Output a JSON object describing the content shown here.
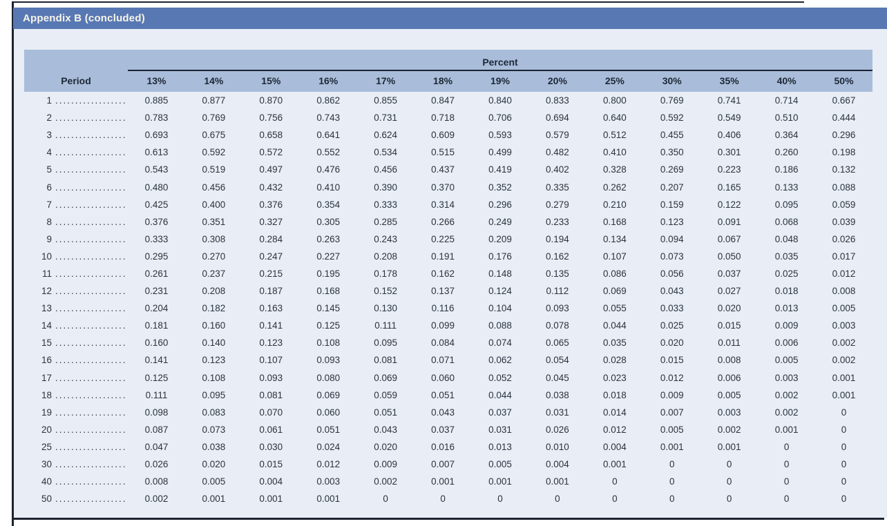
{
  "page": {
    "banner_title": "Appendix B (concluded)"
  },
  "colors": {
    "banner_bg": "#5878b4",
    "banner_text": "#f8f4ea",
    "header_block_bg": "#a9bdda",
    "content_bg": "#e9edf5",
    "rule": "#1c2230",
    "text": "#2a3340"
  },
  "table": {
    "group_header": "Percent",
    "period_header": "Period",
    "leader_dots": "..................",
    "columns": [
      "13%",
      "14%",
      "15%",
      "16%",
      "17%",
      "18%",
      "19%",
      "20%",
      "25%",
      "30%",
      "35%",
      "40%",
      "50%"
    ],
    "rows": [
      {
        "period": "1",
        "values": [
          "0.885",
          "0.877",
          "0.870",
          "0.862",
          "0.855",
          "0.847",
          "0.840",
          "0.833",
          "0.800",
          "0.769",
          "0.741",
          "0.714",
          "0.667"
        ]
      },
      {
        "period": "2",
        "values": [
          "0.783",
          "0.769",
          "0.756",
          "0.743",
          "0.731",
          "0.718",
          "0.706",
          "0.694",
          "0.640",
          "0.592",
          "0.549",
          "0.510",
          "0.444"
        ]
      },
      {
        "period": "3",
        "values": [
          "0.693",
          "0.675",
          "0.658",
          "0.641",
          "0.624",
          "0.609",
          "0.593",
          "0.579",
          "0.512",
          "0.455",
          "0.406",
          "0.364",
          "0.296"
        ]
      },
      {
        "period": "4",
        "values": [
          "0.613",
          "0.592",
          "0.572",
          "0.552",
          "0.534",
          "0.515",
          "0.499",
          "0.482",
          "0.410",
          "0.350",
          "0.301",
          "0.260",
          "0.198"
        ]
      },
      {
        "period": "5",
        "values": [
          "0.543",
          "0.519",
          "0.497",
          "0.476",
          "0.456",
          "0.437",
          "0.419",
          "0.402",
          "0.328",
          "0.269",
          "0.223",
          "0.186",
          "0.132"
        ]
      },
      {
        "period": "6",
        "values": [
          "0.480",
          "0.456",
          "0.432",
          "0.410",
          "0.390",
          "0.370",
          "0.352",
          "0.335",
          "0.262",
          "0.207",
          "0.165",
          "0.133",
          "0.088"
        ]
      },
      {
        "period": "7",
        "values": [
          "0.425",
          "0.400",
          "0.376",
          "0.354",
          "0.333",
          "0.314",
          "0.296",
          "0.279",
          "0.210",
          "0.159",
          "0.122",
          "0.095",
          "0.059"
        ]
      },
      {
        "period": "8",
        "values": [
          "0.376",
          "0.351",
          "0.327",
          "0.305",
          "0.285",
          "0.266",
          "0.249",
          "0.233",
          "0.168",
          "0.123",
          "0.091",
          "0.068",
          "0.039"
        ]
      },
      {
        "period": "9",
        "values": [
          "0.333",
          "0.308",
          "0.284",
          "0.263",
          "0.243",
          "0.225",
          "0.209",
          "0.194",
          "0.134",
          "0.094",
          "0.067",
          "0.048",
          "0.026"
        ]
      },
      {
        "period": "10",
        "values": [
          "0.295",
          "0.270",
          "0.247",
          "0.227",
          "0.208",
          "0.191",
          "0.176",
          "0.162",
          "0.107",
          "0.073",
          "0.050",
          "0.035",
          "0.017"
        ]
      },
      {
        "period": "11",
        "values": [
          "0.261",
          "0.237",
          "0.215",
          "0.195",
          "0.178",
          "0.162",
          "0.148",
          "0.135",
          "0.086",
          "0.056",
          "0.037",
          "0.025",
          "0.012"
        ]
      },
      {
        "period": "12",
        "values": [
          "0.231",
          "0.208",
          "0.187",
          "0.168",
          "0.152",
          "0.137",
          "0.124",
          "0.112",
          "0.069",
          "0.043",
          "0.027",
          "0.018",
          "0.008"
        ]
      },
      {
        "period": "13",
        "values": [
          "0.204",
          "0.182",
          "0.163",
          "0.145",
          "0.130",
          "0.116",
          "0.104",
          "0.093",
          "0.055",
          "0.033",
          "0.020",
          "0.013",
          "0.005"
        ]
      },
      {
        "period": "14",
        "values": [
          "0.181",
          "0.160",
          "0.141",
          "0.125",
          "0.111",
          "0.099",
          "0.088",
          "0.078",
          "0.044",
          "0.025",
          "0.015",
          "0.009",
          "0.003"
        ]
      },
      {
        "period": "15",
        "values": [
          "0.160",
          "0.140",
          "0.123",
          "0.108",
          "0.095",
          "0.084",
          "0.074",
          "0.065",
          "0.035",
          "0.020",
          "0.011",
          "0.006",
          "0.002"
        ]
      },
      {
        "period": "16",
        "values": [
          "0.141",
          "0.123",
          "0.107",
          "0.093",
          "0.081",
          "0.071",
          "0.062",
          "0.054",
          "0.028",
          "0.015",
          "0.008",
          "0.005",
          "0.002"
        ]
      },
      {
        "period": "17",
        "values": [
          "0.125",
          "0.108",
          "0.093",
          "0.080",
          "0.069",
          "0.060",
          "0.052",
          "0.045",
          "0.023",
          "0.012",
          "0.006",
          "0.003",
          "0.001"
        ]
      },
      {
        "period": "18",
        "values": [
          "0.111",
          "0.095",
          "0.081",
          "0.069",
          "0.059",
          "0.051",
          "0.044",
          "0.038",
          "0.018",
          "0.009",
          "0.005",
          "0.002",
          "0.001"
        ]
      },
      {
        "period": "19",
        "values": [
          "0.098",
          "0.083",
          "0.070",
          "0.060",
          "0.051",
          "0.043",
          "0.037",
          "0.031",
          "0.014",
          "0.007",
          "0.003",
          "0.002",
          "0"
        ]
      },
      {
        "period": "20",
        "values": [
          "0.087",
          "0.073",
          "0.061",
          "0.051",
          "0.043",
          "0.037",
          "0.031",
          "0.026",
          "0.012",
          "0.005",
          "0.002",
          "0.001",
          "0"
        ]
      },
      {
        "period": "25",
        "values": [
          "0.047",
          "0.038",
          "0.030",
          "0.024",
          "0.020",
          "0.016",
          "0.013",
          "0.010",
          "0.004",
          "0.001",
          "0.001",
          "0",
          "0"
        ]
      },
      {
        "period": "30",
        "values": [
          "0.026",
          "0.020",
          "0.015",
          "0.012",
          "0.009",
          "0.007",
          "0.005",
          "0.004",
          "0.001",
          "0",
          "0",
          "0",
          "0"
        ]
      },
      {
        "period": "40",
        "values": [
          "0.008",
          "0.005",
          "0.004",
          "0.003",
          "0.002",
          "0.001",
          "0.001",
          "0.001",
          "0",
          "0",
          "0",
          "0",
          "0"
        ]
      },
      {
        "period": "50",
        "values": [
          "0.002",
          "0.001",
          "0.001",
          "0.001",
          "0",
          "0",
          "0",
          "0",
          "0",
          "0",
          "0",
          "0",
          "0"
        ]
      }
    ]
  }
}
